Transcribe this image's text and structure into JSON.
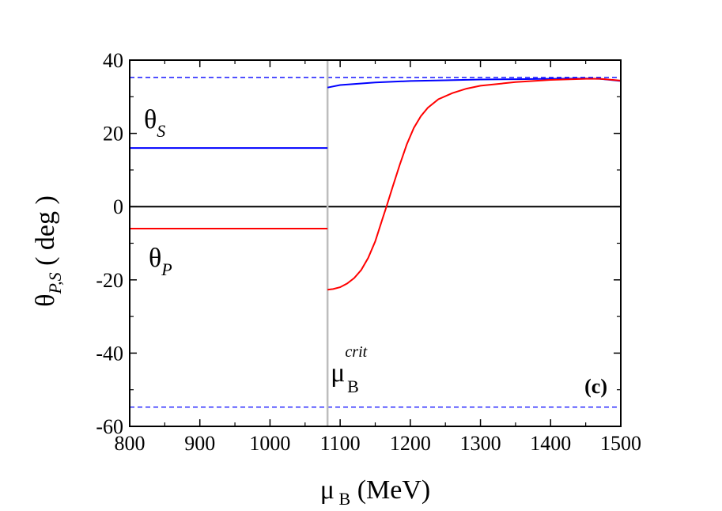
{
  "chart_data": {
    "type": "line",
    "xlabel": {
      "main": "μ",
      "sub": "B",
      "suffix": " (MeV)"
    },
    "ylabel": {
      "main": "θ",
      "sub": "P,S",
      "suffix": " ( deg )"
    },
    "xlim": [
      800,
      1500
    ],
    "ylim": [
      -60,
      40
    ],
    "x_ticks": [
      800,
      900,
      1000,
      1100,
      1200,
      1300,
      1400,
      1500
    ],
    "y_ticks": [
      -60,
      -40,
      -20,
      0,
      20,
      40
    ],
    "grid": false,
    "panel_label": "(c)",
    "critical_line": {
      "x": 1082,
      "label_main": "μ",
      "label_sub": "B",
      "label_sup": "crit",
      "color": "#bdbdbd"
    },
    "reference_lines": [
      {
        "y": 35.26,
        "style": "dashed",
        "color": "#0000ff"
      },
      {
        "y": -54.74,
        "style": "dashed",
        "color": "#0000ff"
      },
      {
        "y": 0,
        "style": "solid",
        "color": "#000000"
      }
    ],
    "series": [
      {
        "label_main": "θ",
        "label_sub": "S",
        "color": "#0000ff",
        "segments": [
          {
            "x": [
              800,
              1082
            ],
            "y": [
              16,
              16
            ]
          },
          {
            "x": [
              1082,
              1100,
              1150,
              1200,
              1250,
              1300,
              1350,
              1400,
              1450,
              1470,
              1500
            ],
            "y": [
              32.5,
              33.2,
              33.9,
              34.3,
              34.5,
              34.7,
              34.8,
              34.9,
              35.0,
              34.9,
              34.3
            ]
          }
        ]
      },
      {
        "label_main": "θ",
        "label_sub": "P",
        "color": "#ff0000",
        "segments": [
          {
            "x": [
              800,
              1082
            ],
            "y": [
              -6,
              -6
            ]
          },
          {
            "x": [
              1082,
              1090,
              1100,
              1110,
              1120,
              1130,
              1140,
              1150,
              1160,
              1166,
              1175,
              1185,
              1195,
              1205,
              1215,
              1225,
              1240,
              1260,
              1280,
              1300,
              1350,
              1400,
              1450,
              1470,
              1500
            ],
            "y": [
              -22.7,
              -22.5,
              -22.0,
              -21.0,
              -19.5,
              -17.3,
              -14.0,
              -9.5,
              -3.5,
              0,
              5.5,
              11.5,
              17.0,
              21.5,
              24.7,
              27.0,
              29.3,
              31.0,
              32.2,
              33.0,
              34.0,
              34.6,
              34.9,
              34.9,
              34.4
            ]
          }
        ]
      }
    ]
  }
}
